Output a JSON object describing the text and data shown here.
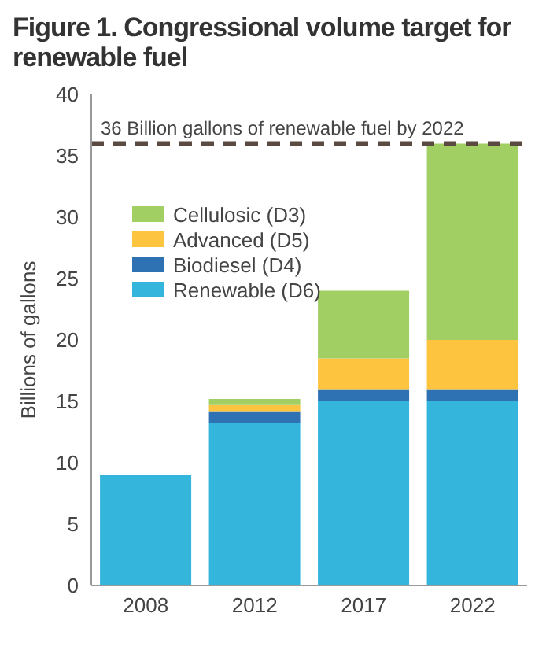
{
  "chart_data": {
    "type": "bar",
    "title": "Figure 1. Congressional volume target for renewable fuel",
    "ylabel": "Billions of gallons",
    "categories": [
      "2008",
      "2012",
      "2017",
      "2022"
    ],
    "stacked": true,
    "series": [
      {
        "name": "Renewable (D6)",
        "color": "#33b5dc",
        "values": [
          9,
          13.2,
          15,
          15
        ]
      },
      {
        "name": "Biodiesel (D4)",
        "color": "#2f72b4",
        "values": [
          0,
          1,
          1,
          1
        ]
      },
      {
        "name": "Advanced (D5)",
        "color": "#fcc43f",
        "values": [
          0,
          0.5,
          2.5,
          4
        ]
      },
      {
        "name": "Cellulosic (D3)",
        "color": "#a1cf63",
        "values": [
          0,
          0.5,
          5.5,
          16
        ]
      }
    ],
    "ylim": [
      0,
      40
    ],
    "yticks": [
      0,
      5,
      10,
      15,
      20,
      25,
      30,
      35,
      40
    ],
    "grid": false,
    "legend": "top left",
    "ref_lines": [
      {
        "axis": "y",
        "value": 36,
        "label": "36 Billion gallons of renewable fuel by 2022",
        "color": "#5a4a42",
        "line_style": "dashed"
      }
    ]
  }
}
